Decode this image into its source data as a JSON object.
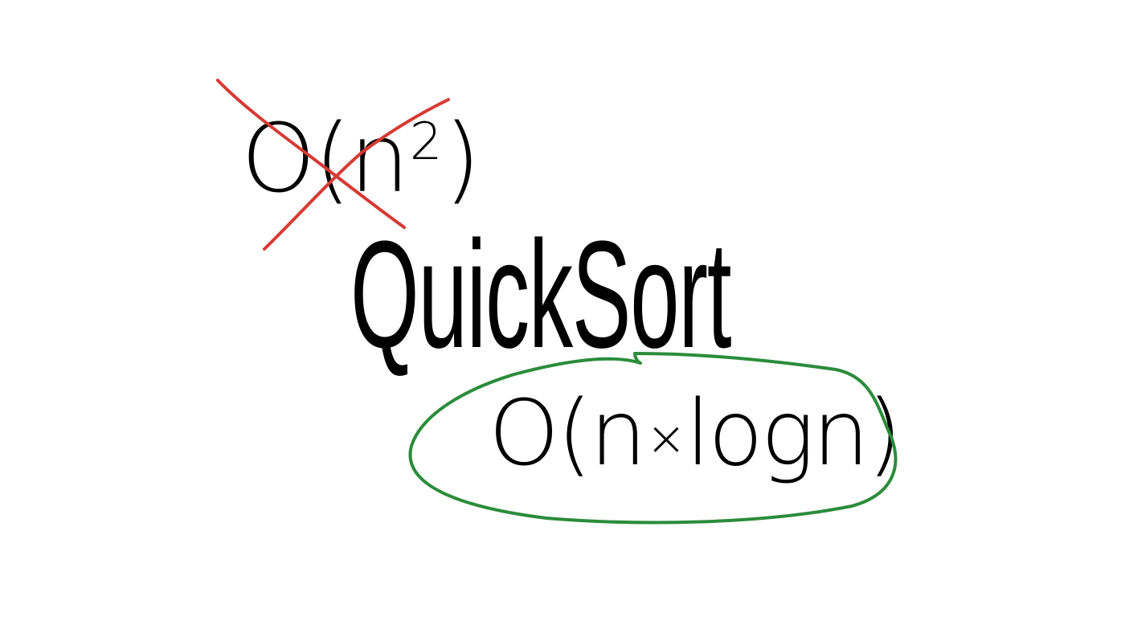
{
  "slide": {
    "crossed_out": {
      "prefix": "O(n",
      "superscript": "2",
      "suffix": ")"
    },
    "title": "QuickSort",
    "answer": {
      "prefix": "O(n",
      "operator": "×",
      "suffix": "logn)"
    }
  },
  "colors": {
    "strike": "#d63a34",
    "circle": "#2a8c3a",
    "text": "#000000"
  }
}
